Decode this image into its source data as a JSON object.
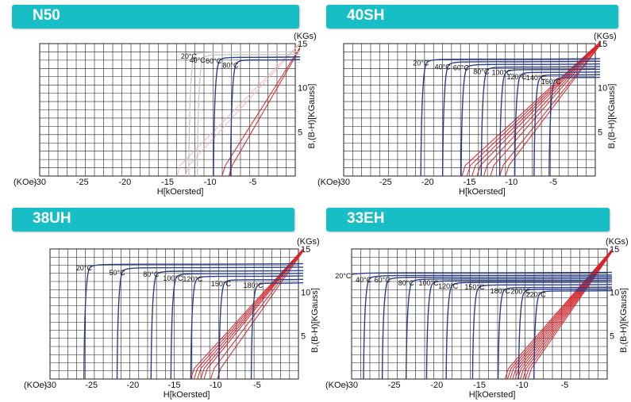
{
  "chart_data": [
    {
      "type": "line",
      "title": "N50",
      "xlabel": "H[kOersted]",
      "ylabel": "B,(B-H)[KGauss]",
      "x_unit": "(KOe)",
      "y_unit": "(KGs)",
      "xlim": [
        -30,
        0
      ],
      "ylim": [
        0,
        15
      ],
      "x_ticks": [
        "-30",
        "-25",
        "-20",
        "-15",
        "-10",
        "-5"
      ],
      "y_ticks": [
        "5",
        "10",
        "15"
      ],
      "grid": true,
      "series": [
        {
          "label": "20°C",
          "br": 14.1,
          "hcj": -12.5,
          "color": "#c8c8c8"
        },
        {
          "label": "40°C",
          "br": 13.8,
          "hcj": -11.5,
          "color": "#c8c8c8"
        },
        {
          "label": "60°C",
          "br": 13.5,
          "hcj": -9.6,
          "color": "#2c3f86"
        },
        {
          "label": "80°C",
          "br": 13.2,
          "hcj": -7.6,
          "color": "#2c3f86"
        }
      ]
    },
    {
      "type": "line",
      "title": "40SH",
      "xlabel": "H[kOersted]",
      "ylabel": "B,(B-H)[KGauss]",
      "x_unit": "(KOe)",
      "y_unit": "(KGs)",
      "xlim": [
        -30,
        0
      ],
      "ylim": [
        0,
        15
      ],
      "x_ticks": [
        "-30",
        "-25",
        "-20",
        "-15",
        "-10",
        "-5"
      ],
      "y_ticks": [
        "5",
        "10",
        "15"
      ],
      "grid": true,
      "series": [
        {
          "label": "20°C",
          "br": 13.3,
          "hcj": -20.8,
          "color": "#2c3f86"
        },
        {
          "label": "40°C",
          "br": 13.0,
          "hcj": -18.2,
          "color": "#2c3f86"
        },
        {
          "label": "60°C",
          "br": 12.7,
          "hcj": -16.0,
          "color": "#2c3f86"
        },
        {
          "label": "80°C",
          "br": 12.4,
          "hcj": -13.6,
          "color": "#2c3f86"
        },
        {
          "label": "100°C",
          "br": 12.1,
          "hcj": -11.4,
          "color": "#2c3f86"
        },
        {
          "label": "120°C",
          "br": 11.8,
          "hcj": -9.6,
          "color": "#2c3f86"
        },
        {
          "label": "140°C",
          "br": 11.5,
          "hcj": -7.3,
          "color": "#2c3f86"
        },
        {
          "label": "160°C",
          "br": 11.2,
          "hcj": -5.5,
          "color": "#2c3f86"
        }
      ]
    },
    {
      "type": "line",
      "title": "38UH",
      "xlabel": "H[kOersted]",
      "ylabel": "B,(B-H)[KGauss]",
      "x_unit": "(KOe)",
      "y_unit": "(KGs)",
      "xlim": [
        -30,
        0
      ],
      "ylim": [
        0,
        15
      ],
      "x_ticks": [
        "-30",
        "-25",
        "-20",
        "-15",
        "-10",
        "-5"
      ],
      "y_ticks": [
        "5",
        "10",
        "15"
      ],
      "grid": true,
      "series": [
        {
          "label": "20°C",
          "br": 13.3,
          "hcj": -25.9,
          "color": "#2c3f86"
        },
        {
          "label": "50°C",
          "br": 12.9,
          "hcj": -21.9,
          "color": "#2c3f86"
        },
        {
          "label": "80°C",
          "br": 12.5,
          "hcj": -17.8,
          "color": "#2c3f86"
        },
        {
          "label": "100°C",
          "br": 12.2,
          "hcj": -15.4,
          "color": "#2c3f86"
        },
        {
          "label": "120°C",
          "br": 11.9,
          "hcj": -13.0,
          "color": "#2c3f86"
        },
        {
          "label": "150°C",
          "br": 11.5,
          "hcj": -9.6,
          "color": "#2c3f86"
        },
        {
          "label": "180°C",
          "br": 11.1,
          "hcj": -5.7,
          "color": "#2c3f86"
        }
      ]
    },
    {
      "type": "line",
      "title": "33EH",
      "xlabel": "H[kOersted]",
      "ylabel": "B,(B-H)[KGauss]",
      "x_unit": "(KOe)",
      "y_unit": "(KGs)",
      "xlim": [
        -30,
        0
      ],
      "ylim": [
        0,
        15
      ],
      "x_ticks": [
        "-30",
        "-25",
        "-20",
        "-15",
        "-10",
        "-5"
      ],
      "y_ticks": [
        "5",
        "10",
        "15"
      ],
      "grid": true,
      "series": [
        {
          "label": "20°C",
          "br": 12.3,
          "hcj": -31.0,
          "color": "#2c3f86"
        },
        {
          "label": "40°C",
          "br": 12.0,
          "hcj": -28.6,
          "color": "#2c3f86"
        },
        {
          "label": "60°C",
          "br": 11.8,
          "hcj": -26.4,
          "color": "#2c3f86"
        },
        {
          "label": "80°C",
          "br": 11.6,
          "hcj": -23.6,
          "color": "#2c3f86"
        },
        {
          "label": "100°C",
          "br": 11.4,
          "hcj": -21.2,
          "color": "#2c3f86"
        },
        {
          "label": "120°C",
          "br": 11.2,
          "hcj": -18.9,
          "color": "#2c3f86"
        },
        {
          "label": "150°C",
          "br": 10.9,
          "hcj": -15.8,
          "color": "#2c3f86"
        },
        {
          "label": "180°C",
          "br": 10.6,
          "hcj": -12.8,
          "color": "#2c3f86"
        },
        {
          "label": "200°C",
          "br": 10.4,
          "hcj": -10.4,
          "color": "#2c3f86"
        },
        {
          "label": "220°C",
          "br": 10.2,
          "hcj": -8.6,
          "color": "#2c3f86"
        }
      ]
    }
  ],
  "colors": {
    "header": "#17bec5",
    "intrinsic_curve": "#2c3f86",
    "normal_curve": "#d6252b",
    "grid": "#222222"
  }
}
